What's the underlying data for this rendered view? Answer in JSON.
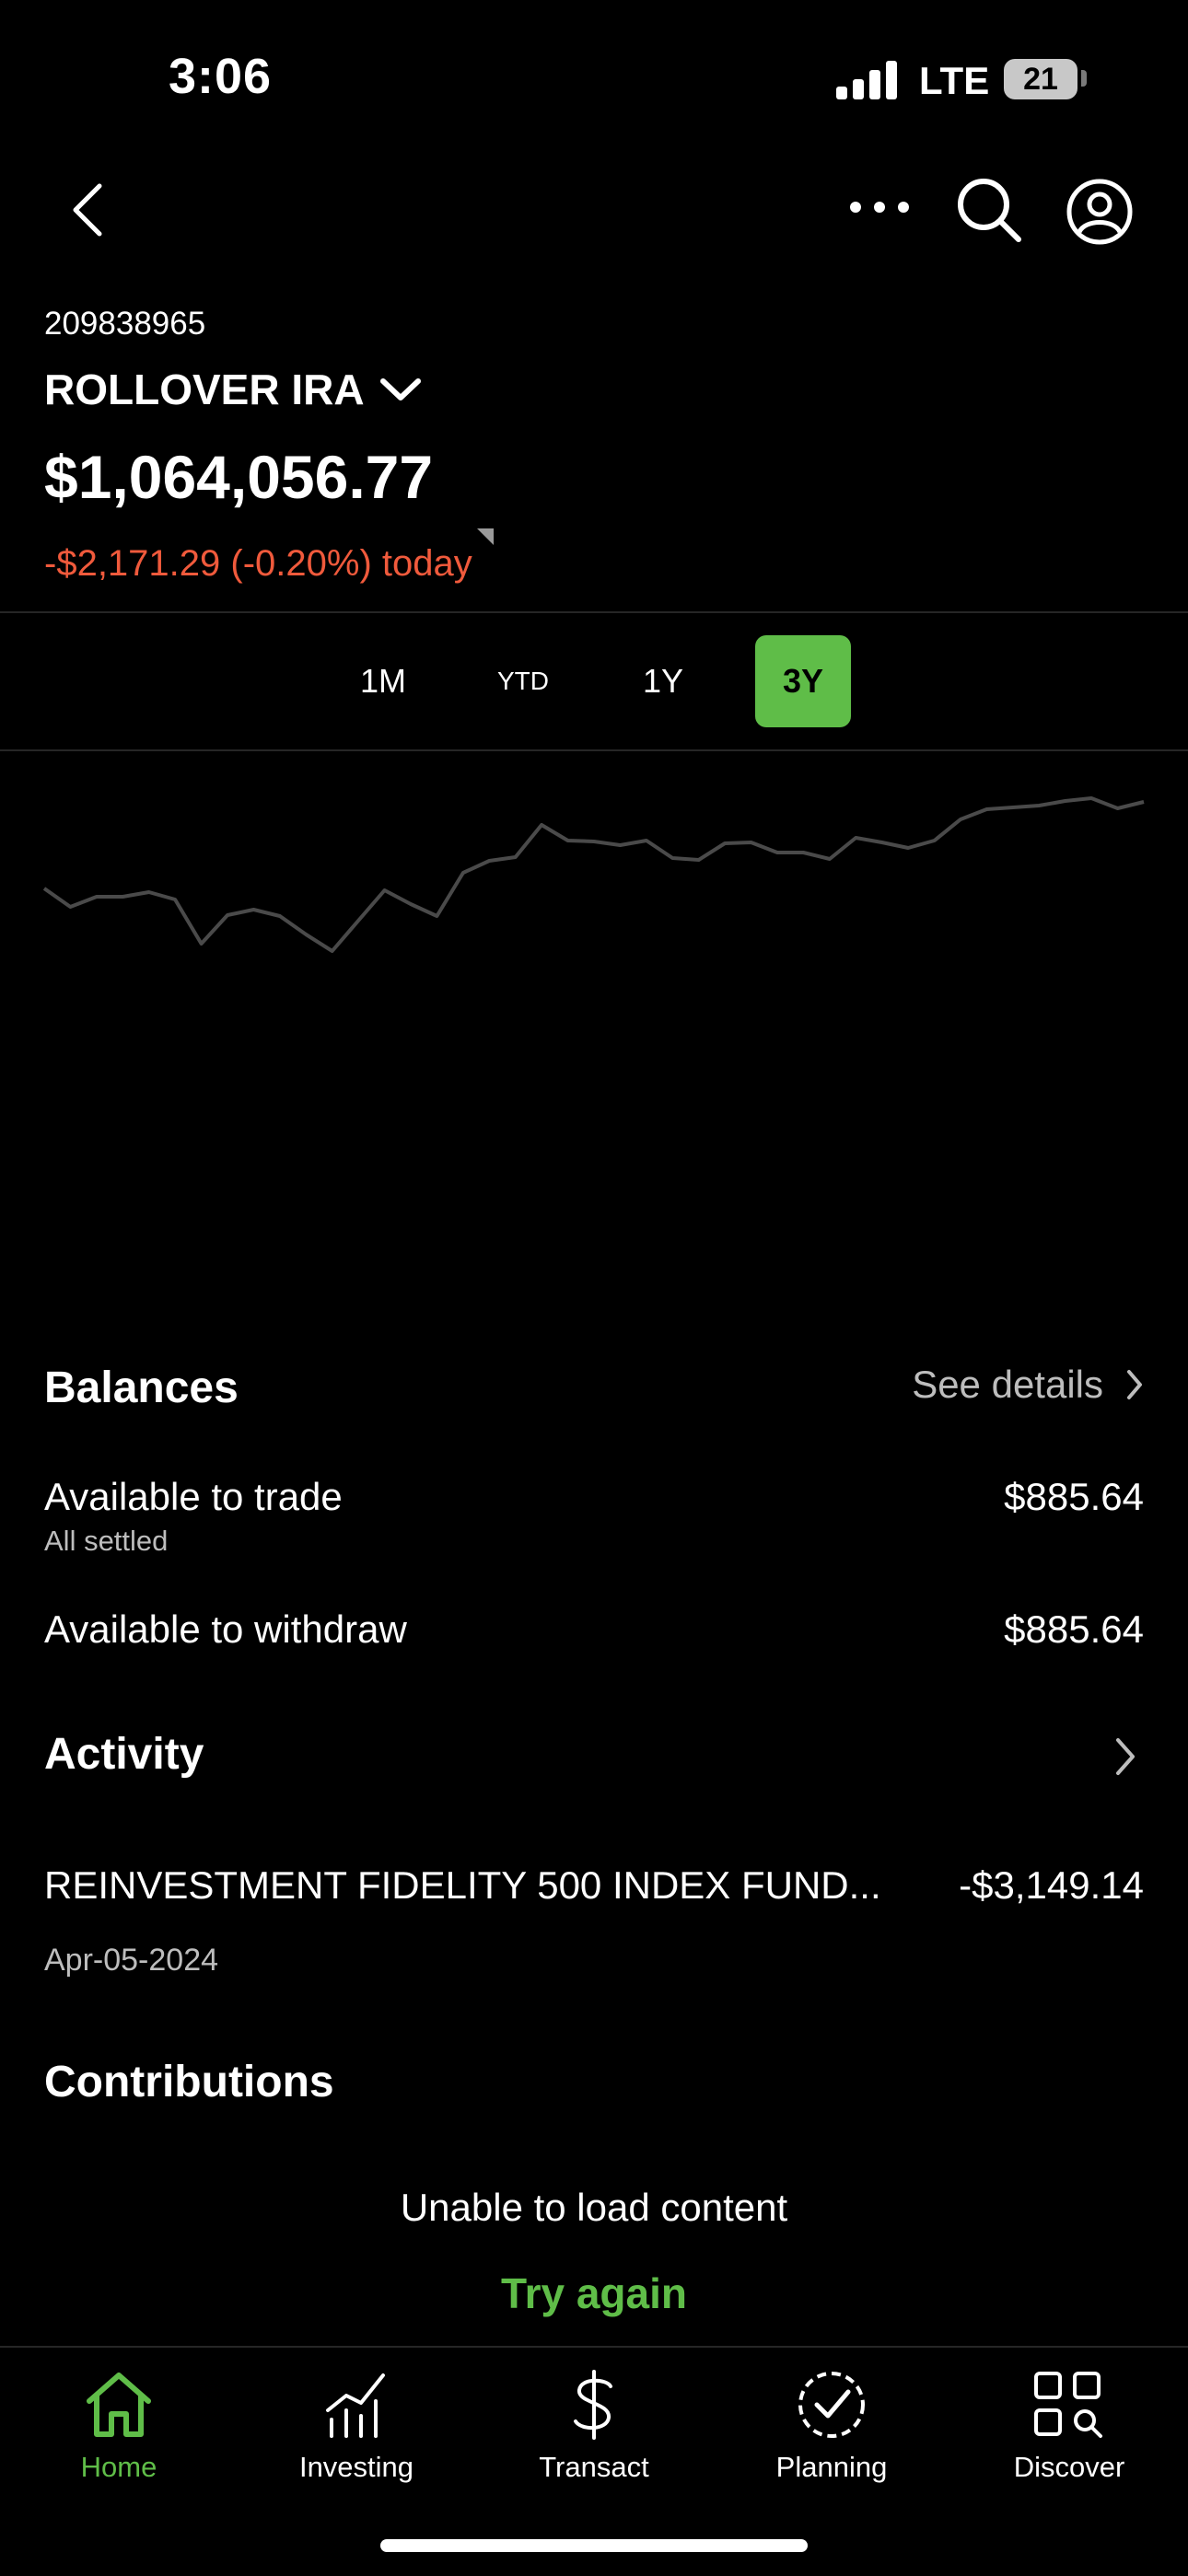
{
  "status_bar": {
    "time": "3:06",
    "network": "LTE",
    "battery": "21"
  },
  "header": {
    "account_number": "209838965",
    "account_name": "ROLLOVER IRA",
    "balance": "$1,064,056.77",
    "change_today": "-$2,171.29 (-0.20%) today"
  },
  "range_tabs": {
    "items": [
      "1M",
      "YTD",
      "1Y",
      "3Y"
    ],
    "active": "3Y"
  },
  "chart_data": {
    "type": "line",
    "title": "",
    "xlabel": "",
    "ylabel": "",
    "grid": false,
    "series": [
      {
        "values": [
          605,
          625,
          614,
          614,
          609,
          617,
          665,
          634,
          628,
          635,
          655,
          673,
          640,
          607,
          622,
          635,
          588,
          575,
          571,
          536,
          553,
          554,
          558,
          553,
          572,
          574,
          556,
          555,
          566,
          566,
          573,
          550,
          555,
          561,
          553,
          530,
          519,
          517,
          515,
          510,
          507,
          518,
          511
        ]
      }
    ],
    "note_values": "relative line heights, unlabeled axis"
  },
  "balances": {
    "title": "Balances",
    "see_details": "See details",
    "available_to_trade_label": "Available to trade",
    "available_to_trade_sub": "All settled",
    "available_to_trade_value": "$885.64",
    "available_to_withdraw_label": "Available to withdraw",
    "available_to_withdraw_value": "$885.64"
  },
  "activity": {
    "title": "Activity",
    "item_description": "REINVESTMENT FIDELITY 500 INDEX FUND...",
    "item_amount": "-$3,149.14",
    "item_date": "Apr-05-2024"
  },
  "contributions": {
    "title": "Contributions",
    "error": "Unable to load content",
    "retry": "Try again"
  },
  "tabbar": {
    "items": [
      {
        "label": "Home",
        "icon": "home-icon"
      },
      {
        "label": "Investing",
        "icon": "chart-icon"
      },
      {
        "label": "Transact",
        "icon": "dollar-icon"
      },
      {
        "label": "Planning",
        "icon": "check-circle-icon"
      },
      {
        "label": "Discover",
        "icon": "grid-search-icon"
      }
    ],
    "active": "Home"
  },
  "colors": {
    "accent": "#5fbd48",
    "negative": "#f05a3c",
    "chart_line": "#4a4a4a"
  }
}
